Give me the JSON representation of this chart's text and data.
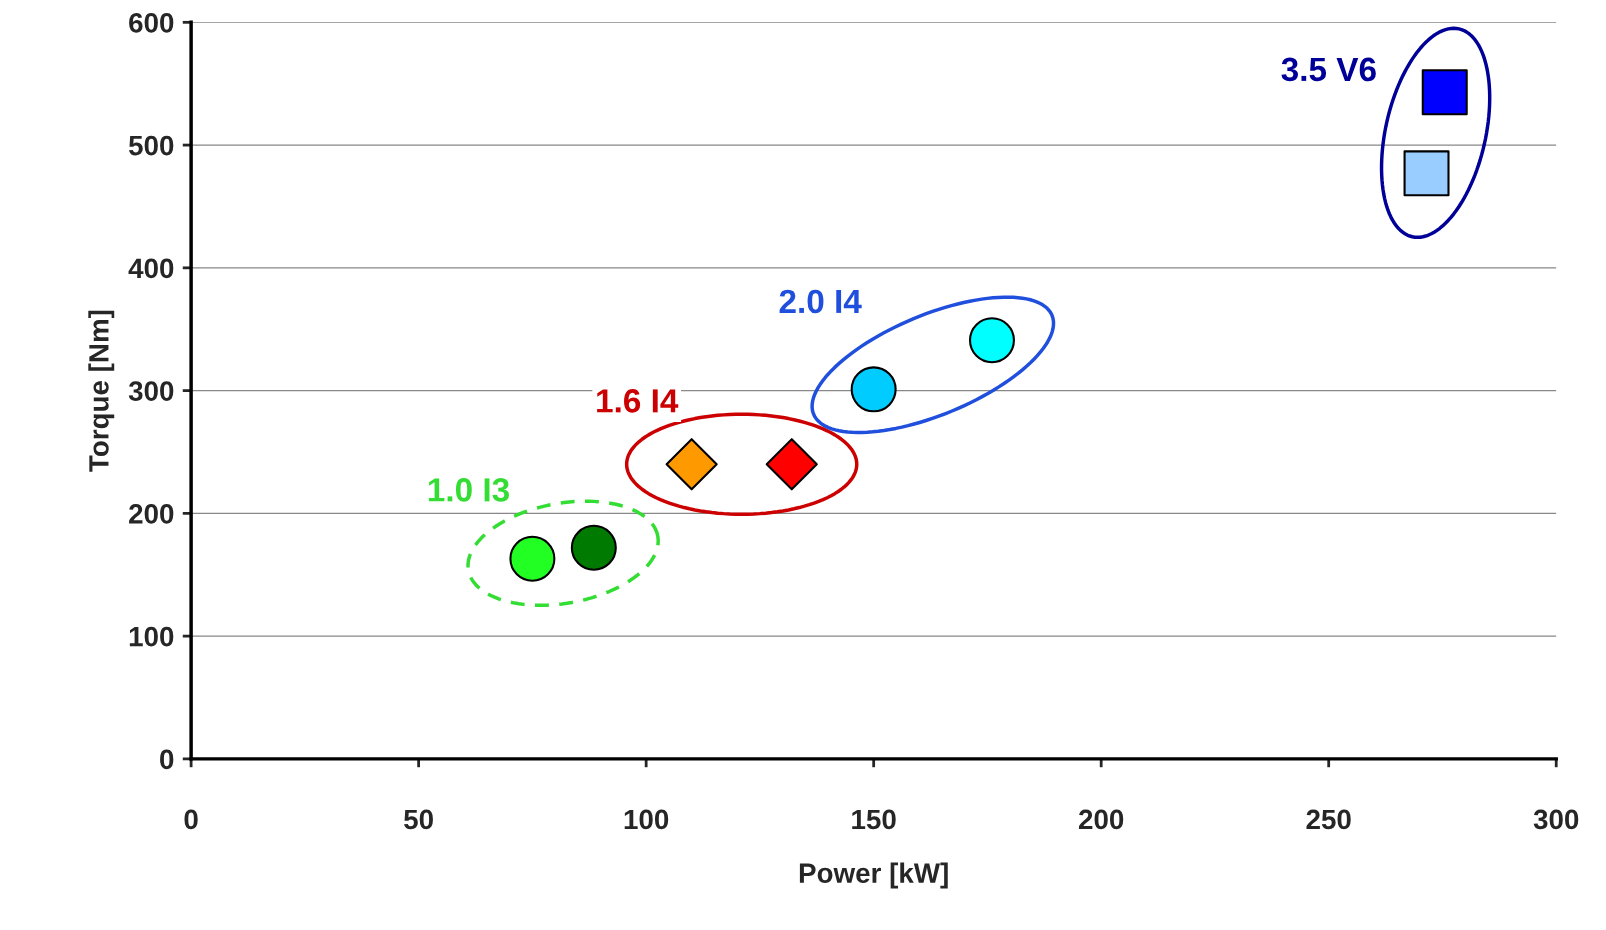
{
  "chart_data": {
    "type": "scatter",
    "xlabel": "Power [kW]",
    "ylabel": "Torque [Nm]",
    "xlim": [
      0,
      300
    ],
    "ylim": [
      0,
      600
    ],
    "xticks": [
      0,
      50,
      100,
      150,
      200,
      250,
      300
    ],
    "yticks": [
      0,
      100,
      200,
      300,
      400,
      500,
      600
    ],
    "grid": "y",
    "legend": false,
    "series": [
      {
        "name": "1.0 I3",
        "marker": "circle",
        "color": "#33dd33",
        "line_style": "dashed",
        "x": [
          75,
          88.5
        ],
        "values": [
          163,
          172
        ],
        "colors": [
          "#22ff22",
          "#007a00"
        ]
      },
      {
        "name": "1.6 I4",
        "marker": "diamond",
        "color": "#cc0000",
        "line_style": "solid",
        "x": [
          110,
          132
        ],
        "values": [
          240,
          240
        ],
        "colors": [
          "#ff9900",
          "#ff0000"
        ]
      },
      {
        "name": "2.0 I4",
        "marker": "circle",
        "color": "#1f4fdc",
        "line_style": "solid",
        "x": [
          150,
          176
        ],
        "values": [
          301,
          341
        ],
        "colors": [
          "#00ccff",
          "#00ffff"
        ]
      },
      {
        "name": "3.5 V6",
        "marker": "square",
        "color": "#000099",
        "line_style": "solid",
        "x": [
          271.5,
          275.5
        ],
        "values": [
          477,
          543
        ],
        "colors": [
          "#99ccff",
          "#0000ff"
        ]
      }
    ]
  }
}
